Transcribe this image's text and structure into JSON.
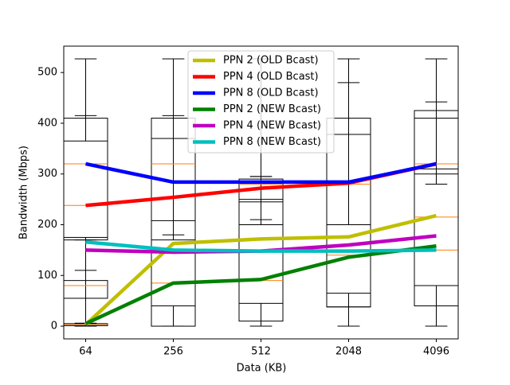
{
  "chart_data": {
    "type": "line",
    "xlabel": "Data (KB)",
    "ylabel": "Bandwidth (Mbps)",
    "categories": [
      "64",
      "256",
      "512",
      "2048",
      "4096"
    ],
    "ylim": [
      -25,
      552
    ],
    "yticks": [
      0,
      100,
      200,
      300,
      400,
      500
    ],
    "legend": "upper center",
    "box_color": "#000000",
    "median_color": "#ff7f0e",
    "series": [
      {
        "name": "PPN 2 (OLD Bcast)",
        "color": "#bfbf00",
        "values": [
          3,
          163,
          172,
          176,
          218
        ]
      },
      {
        "name": "PPN 4 (OLD Bcast)",
        "color": "#ff0000",
        "values": [
          238,
          254,
          272,
          282,
          320
        ]
      },
      {
        "name": "PPN 8 (OLD Bcast)",
        "color": "#0000ff",
        "values": [
          320,
          284,
          284,
          284,
          320
        ]
      },
      {
        "name": "PPN 2 (NEW Bcast)",
        "color": "#008000",
        "values": [
          5,
          85,
          92,
          136,
          158
        ]
      },
      {
        "name": "PPN 4 (NEW Bcast)",
        "color": "#bf00bf",
        "values": [
          150,
          146,
          148,
          160,
          178
        ]
      },
      {
        "name": "PPN 8 (NEW Bcast)",
        "color": "#00bfbf",
        "values": [
          166,
          150,
          148,
          148,
          150
        ]
      }
    ],
    "boxes": [
      [
        {
          "whislo": 0,
          "q1": 170,
          "med": 238,
          "q3": 410,
          "whishi": 527
        },
        {
          "whislo": 0,
          "q1": 55,
          "med": 80,
          "q3": 90,
          "whishi": 110
        },
        {
          "whislo": 170,
          "q1": 175,
          "med": 320,
          "q3": 365,
          "whishi": 415
        },
        {
          "whislo": 0,
          "q1": 1,
          "med": 3,
          "q3": 5,
          "whishi": 6
        }
      ],
      [
        {
          "whislo": 0,
          "q1": 0,
          "med": 85,
          "q3": 170,
          "whishi": 527
        },
        {
          "whislo": 0,
          "q1": 40,
          "med": 150,
          "q3": 410,
          "whishi": 527
        },
        {
          "whislo": 180,
          "q1": 208,
          "med": 320,
          "q3": 370,
          "whishi": 415
        }
      ],
      [
        {
          "whislo": 0,
          "q1": 10,
          "med": 150,
          "q3": 250,
          "whishi": 527
        },
        {
          "whislo": 0,
          "q1": 45,
          "med": 90,
          "q3": 200,
          "whishi": 295
        },
        {
          "whislo": 210,
          "q1": 245,
          "med": 280,
          "q3": 290,
          "whishi": 295
        }
      ],
      [
        {
          "whislo": 0,
          "q1": 38,
          "med": 140,
          "q3": 410,
          "whishi": 527
        },
        {
          "whislo": 0,
          "q1": 65,
          "med": 150,
          "q3": 200,
          "whishi": 480
        },
        {
          "whislo": 0,
          "q1": 38,
          "med": 280,
          "q3": 378,
          "whishi": 527
        }
      ],
      [
        {
          "whislo": 0,
          "q1": 40,
          "med": 150,
          "q3": 410,
          "whishi": 527
        },
        {
          "whislo": 0,
          "q1": 80,
          "med": 215,
          "q3": 300,
          "whishi": 442
        },
        {
          "whislo": 280,
          "q1": 310,
          "med": 320,
          "q3": 425,
          "whishi": 527
        }
      ]
    ]
  }
}
